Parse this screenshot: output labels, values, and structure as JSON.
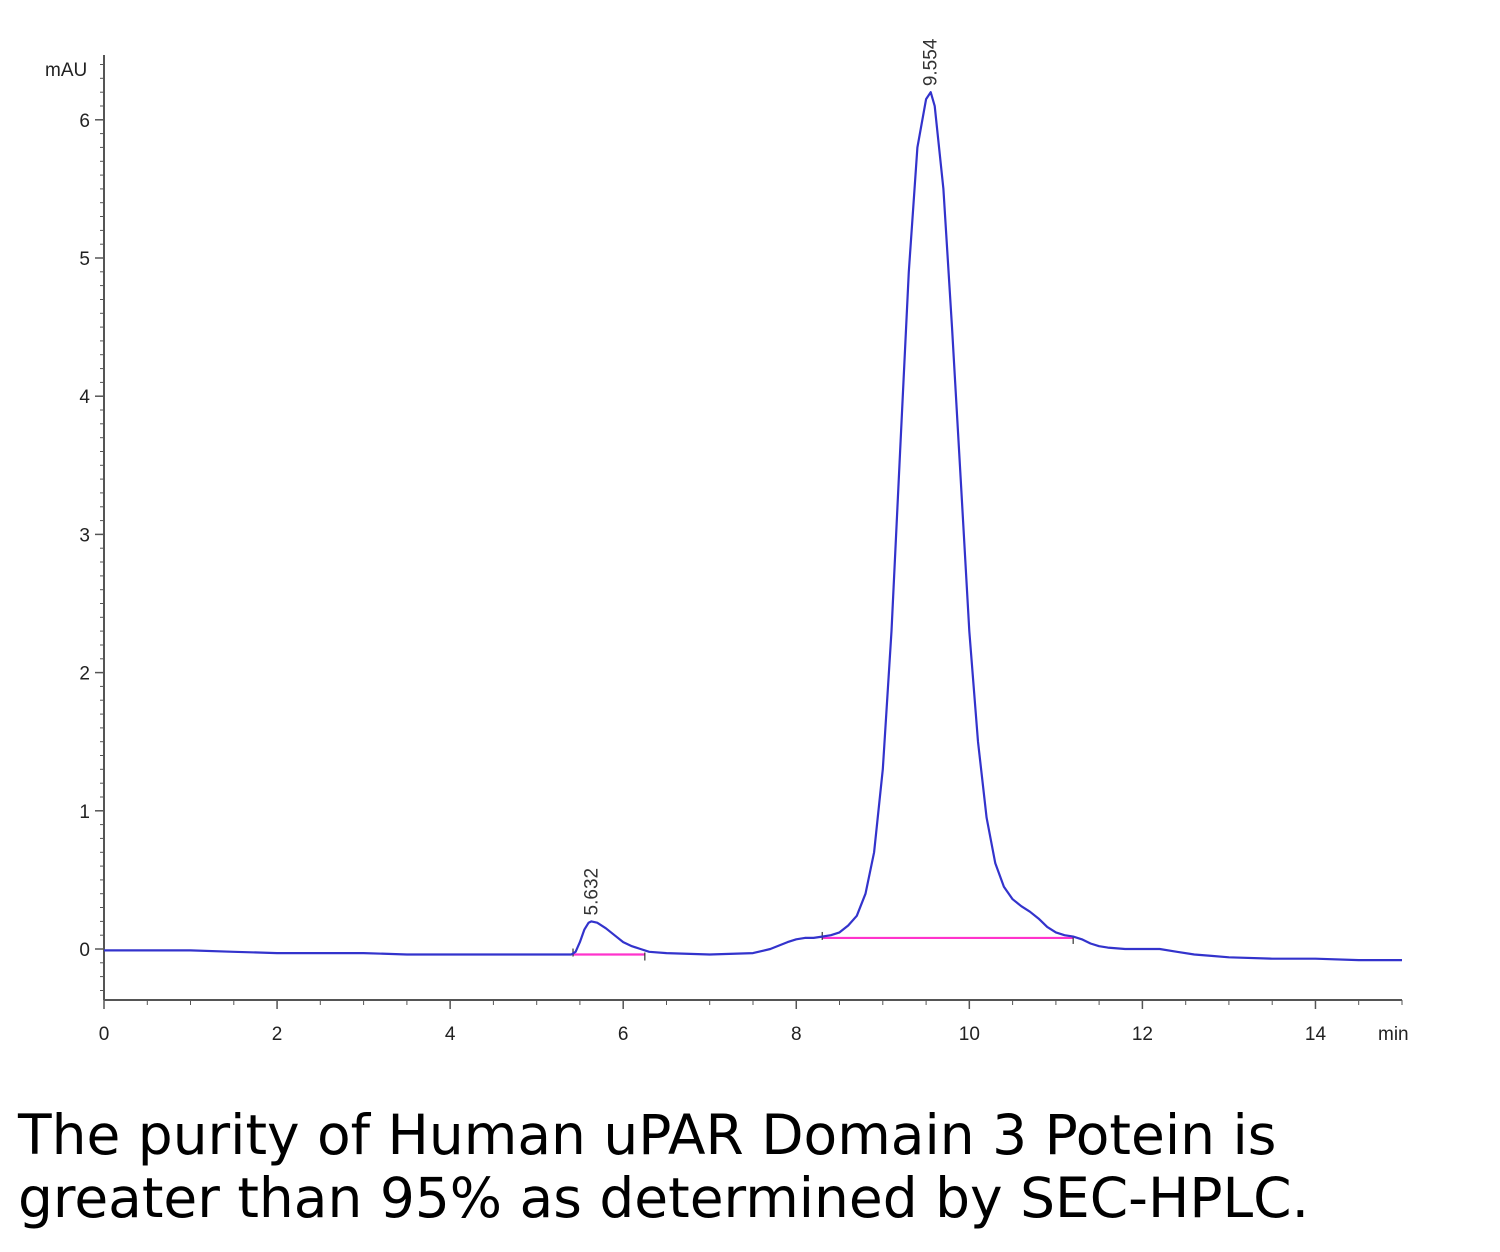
{
  "chart_data": {
    "type": "line",
    "x_unit": "min",
    "y_unit": "mAU",
    "xlim": [
      0,
      15
    ],
    "ylim": [
      -0.35,
      6.5
    ],
    "x_ticks": [
      0,
      2,
      4,
      6,
      8,
      10,
      12,
      14
    ],
    "y_ticks": [
      0,
      1,
      2,
      3,
      4,
      5,
      6
    ],
    "series": [
      {
        "color": "#3333cc",
        "x": [
          0,
          0.5,
          1,
          1.5,
          2,
          2.5,
          3,
          3.5,
          4,
          4.5,
          5,
          5.4,
          5.45,
          5.5,
          5.55,
          5.6,
          5.632,
          5.7,
          5.8,
          5.9,
          6.0,
          6.1,
          6.2,
          6.3,
          6.5,
          7.0,
          7.5,
          7.7,
          7.9,
          8.0,
          8.1,
          8.2,
          8.3,
          8.4,
          8.5,
          8.6,
          8.7,
          8.8,
          8.9,
          9.0,
          9.1,
          9.2,
          9.3,
          9.4,
          9.5,
          9.554,
          9.6,
          9.7,
          9.8,
          9.9,
          10.0,
          10.1,
          10.2,
          10.3,
          10.4,
          10.5,
          10.6,
          10.7,
          10.8,
          10.9,
          11.0,
          11.1,
          11.2,
          11.3,
          11.4,
          11.5,
          11.6,
          11.8,
          12.0,
          12.2,
          12.4,
          12.6,
          12.8,
          13.0,
          13.5,
          14.0,
          14.5,
          15.0
        ],
        "y": [
          -0.01,
          -0.01,
          -0.01,
          -0.02,
          -0.03,
          -0.03,
          -0.03,
          -0.04,
          -0.04,
          -0.04,
          -0.04,
          -0.04,
          -0.02,
          0.05,
          0.14,
          0.19,
          0.2,
          0.19,
          0.15,
          0.1,
          0.05,
          0.02,
          0.0,
          -0.02,
          -0.03,
          -0.04,
          -0.03,
          0.0,
          0.05,
          0.07,
          0.08,
          0.08,
          0.09,
          0.1,
          0.12,
          0.17,
          0.24,
          0.4,
          0.7,
          1.3,
          2.3,
          3.6,
          4.9,
          5.8,
          6.15,
          6.2,
          6.1,
          5.5,
          4.5,
          3.4,
          2.3,
          1.5,
          0.95,
          0.62,
          0.45,
          0.36,
          0.31,
          0.27,
          0.22,
          0.16,
          0.12,
          0.1,
          0.09,
          0.07,
          0.04,
          0.02,
          0.01,
          0.0,
          0.0,
          0.0,
          -0.02,
          -0.04,
          -0.05,
          -0.06,
          -0.07,
          -0.07,
          -0.08,
          -0.08
        ]
      }
    ],
    "peak_labels": [
      {
        "x": 5.632,
        "y": 0.2,
        "label": "5.632"
      },
      {
        "x": 9.554,
        "y": 6.2,
        "label": "9.554"
      }
    ],
    "baselines": [
      {
        "color": "#ff33cc",
        "x": [
          5.42,
          6.25
        ],
        "y": [
          -0.04,
          -0.04
        ]
      },
      {
        "color": "#ff33cc",
        "x": [
          8.3,
          11.2
        ],
        "y": [
          0.08,
          0.08
        ]
      }
    ]
  },
  "caption": {
    "line1": "The purity of Human uPAR Domain 3 Potein is",
    "line2": "greater than 95% as determined by SEC-HPLC."
  },
  "colors": {
    "axis": "#555555",
    "trace": "#3333cc",
    "baseline": "#ff33cc"
  }
}
